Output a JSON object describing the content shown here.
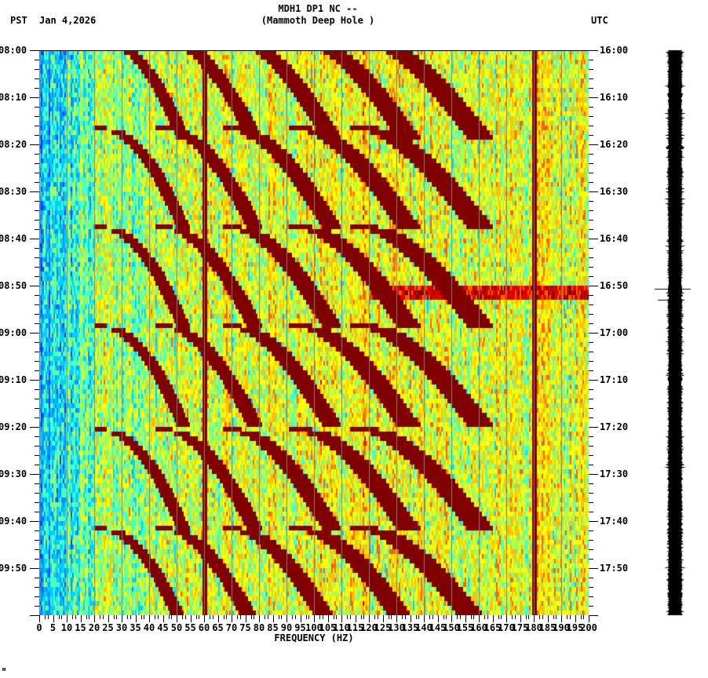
{
  "header": {
    "title_line1": "MDH1 DP1 NC --",
    "title_line2": "(Mammoth Deep Hole )",
    "left_timezone": "PST",
    "date": "Jan 4,2026",
    "right_timezone": "UTC"
  },
  "footer_mark": "ᴍ",
  "chart_data": {
    "type": "heatmap",
    "title": "MDH1 DP1 NC -- (Mammoth Deep Hole )",
    "xlabel": "FREQUENCY (HZ)",
    "ylabel_left": "PST",
    "ylabel_right": "UTC",
    "xlim": [
      0,
      200
    ],
    "x_ticks": [
      0,
      5,
      10,
      15,
      20,
      25,
      30,
      35,
      40,
      45,
      50,
      55,
      60,
      65,
      70,
      75,
      80,
      85,
      90,
      95,
      100,
      105,
      110,
      115,
      120,
      125,
      130,
      135,
      140,
      145,
      150,
      155,
      160,
      165,
      170,
      175,
      180,
      185,
      190,
      195,
      200
    ],
    "y_ticks_left": [
      "08:00",
      "08:10",
      "08:20",
      "08:30",
      "08:40",
      "08:50",
      "09:00",
      "09:10",
      "09:20",
      "09:30",
      "09:40",
      "09:50"
    ],
    "y_ticks_right": [
      "16:00",
      "16:10",
      "16:20",
      "16:30",
      "16:40",
      "16:50",
      "17:00",
      "17:10",
      "17:20",
      "17:30",
      "17:40",
      "17:50"
    ],
    "time_range_minutes": 120,
    "grid_lines_hz_every": 10,
    "colormap": [
      "#0040ff",
      "#0090ff",
      "#00d0ff",
      "#40ffd0",
      "#a0ff60",
      "#ffff00",
      "#ffc000",
      "#ff6000",
      "#e00000",
      "#800000"
    ],
    "persistent_lines_hz": [
      60,
      180
    ],
    "curve_cycle_start_minutes": [
      -3,
      16,
      37,
      58,
      80,
      101
    ],
    "curve_cycle_length_minutes": 21,
    "curve_band_base_hz": [
      22,
      45,
      70,
      95,
      118
    ],
    "curve_sweep_hz": 30,
    "event_minute": 51,
    "gridline_color": "#808080"
  },
  "seismogram": {
    "label": "seismogram trace",
    "event_minute": 51
  }
}
